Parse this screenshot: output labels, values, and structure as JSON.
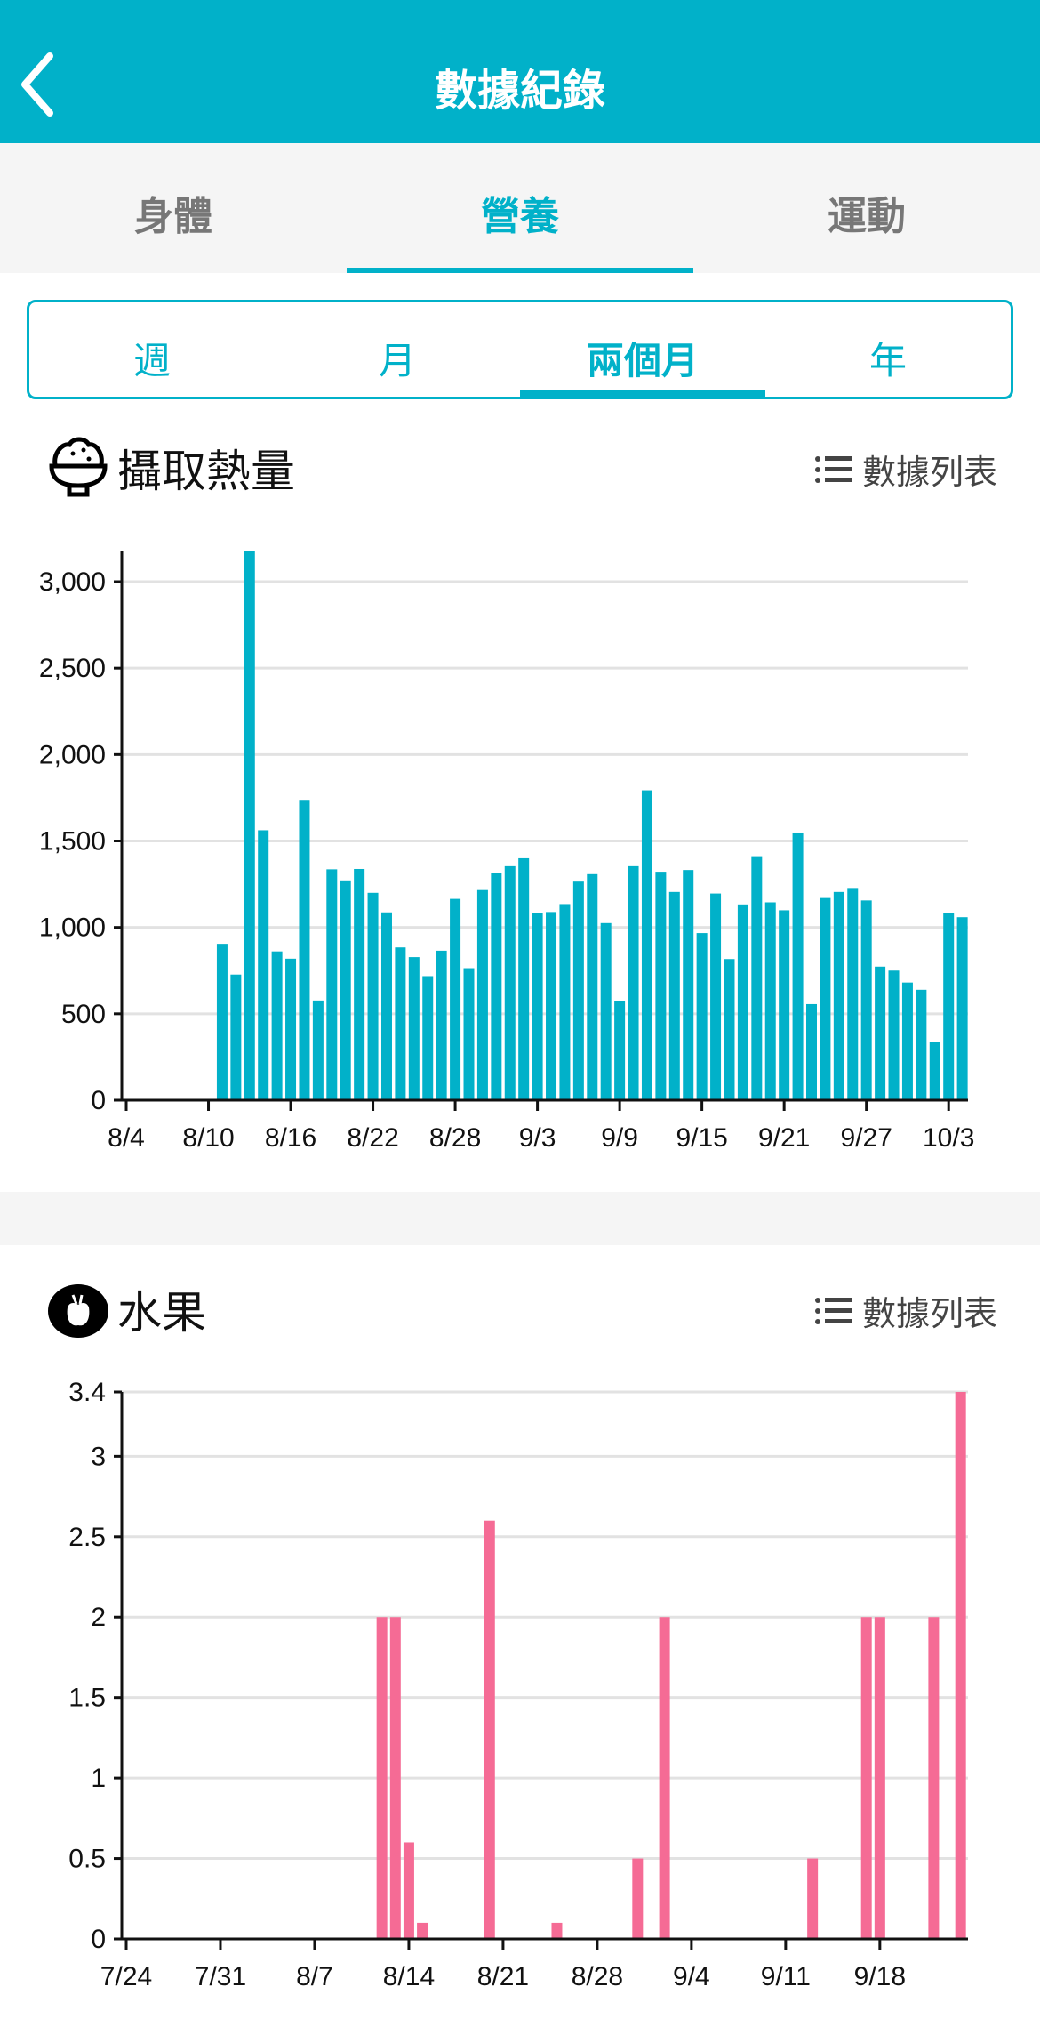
{
  "header": {
    "title": "數據紀錄",
    "back_icon": "chevron-left-icon"
  },
  "tabs": [
    {
      "label": "身體"
    },
    {
      "label": "營養",
      "active": true
    },
    {
      "label": "運動"
    }
  ],
  "periods": [
    {
      "label": "週"
    },
    {
      "label": "月"
    },
    {
      "label": "兩個月",
      "active": true
    },
    {
      "label": "年"
    }
  ],
  "colors": {
    "accent": "#01b1c9",
    "calorie_bar": "#01b1c9",
    "fruit_bar": "#f56b95"
  },
  "sections": [
    {
      "title": "攝取熱量",
      "icon": "rice-bowl-icon",
      "list_label": "數據列表"
    },
    {
      "title": "水果",
      "icon": "apple-icon",
      "list_label": "數據列表"
    }
  ],
  "chart_data": [
    {
      "type": "bar",
      "title": "攝取熱量",
      "x_start": "8/4",
      "x_days": 61,
      "xticks": [
        "8/4",
        "8/10",
        "8/16",
        "8/22",
        "8/28",
        "9/3",
        "9/9",
        "9/15",
        "9/21",
        "9/27",
        "10/3"
      ],
      "xtick_every_days": 6,
      "yticks": [
        0,
        500,
        1000,
        1500,
        2000,
        2500,
        3000
      ],
      "ytick_labels": [
        "0",
        "500",
        "1,000",
        "1,500",
        "2,000",
        "2,500",
        "3,000"
      ],
      "ylim": [
        0,
        3175
      ],
      "grid": true,
      "first_bar_day_offset": 7,
      "categories": [
        "8/11",
        "8/12",
        "8/13",
        "8/14",
        "8/15",
        "8/16",
        "8/17",
        "8/18",
        "8/19",
        "8/20",
        "8/21",
        "8/22",
        "8/23",
        "8/24",
        "8/25",
        "8/26",
        "8/27",
        "8/28",
        "8/29",
        "8/30",
        "8/31",
        "9/1",
        "9/2",
        "9/3",
        "9/4",
        "9/5",
        "9/6",
        "9/7",
        "9/8",
        "9/9",
        "9/10",
        "9/11",
        "9/12",
        "9/13",
        "9/14",
        "9/15",
        "9/16",
        "9/17",
        "9/18",
        "9/19",
        "9/20",
        "9/21",
        "9/22",
        "9/23",
        "9/24",
        "9/25",
        "9/26",
        "9/27",
        "9/28",
        "9/29",
        "9/30",
        "10/1",
        "10/2",
        "10/3",
        "10/4"
      ],
      "values": [
        905,
        727,
        3180,
        1562,
        861,
        819,
        1733,
        577,
        1336,
        1272,
        1338,
        1200,
        1087,
        884,
        828,
        718,
        865,
        1165,
        764,
        1216,
        1317,
        1354,
        1400,
        1082,
        1089,
        1135,
        1265,
        1308,
        1025,
        575,
        1354,
        1793,
        1322,
        1205,
        1332,
        967,
        1196,
        817,
        1133,
        1412,
        1145,
        1099,
        1549,
        556,
        1170,
        1205,
        1228,
        1156,
        773,
        750,
        681,
        639,
        337,
        1085,
        1059
      ]
    },
    {
      "type": "bar",
      "title": "水果",
      "x_start": "7/24",
      "x_days": 63,
      "xticks": [
        "7/24",
        "7/31",
        "8/7",
        "8/14",
        "8/21",
        "8/28",
        "9/4",
        "9/11",
        "9/18"
      ],
      "xtick_every_days": 7,
      "yticks": [
        0,
        0.5,
        1,
        1.5,
        2,
        2.5,
        3,
        3.4
      ],
      "ytick_labels": [
        "0",
        "0.5",
        "1",
        "1.5",
        "2",
        "2.5",
        "3",
        "3.4"
      ],
      "ylim": [
        0,
        3.4
      ],
      "grid": true,
      "categories": [
        "8/12",
        "8/13",
        "8/14",
        "8/15",
        "8/20",
        "8/25",
        "8/31",
        "9/2",
        "9/13",
        "9/17",
        "9/18",
        "9/22",
        "9/24"
      ],
      "day_offsets": [
        19,
        20,
        21,
        22,
        27,
        32,
        38,
        40,
        51,
        55,
        56,
        60,
        62
      ],
      "values": [
        2,
        2,
        0.6,
        0.1,
        2.6,
        0.1,
        0.5,
        2,
        0.5,
        2,
        2,
        2,
        3.4
      ]
    }
  ]
}
